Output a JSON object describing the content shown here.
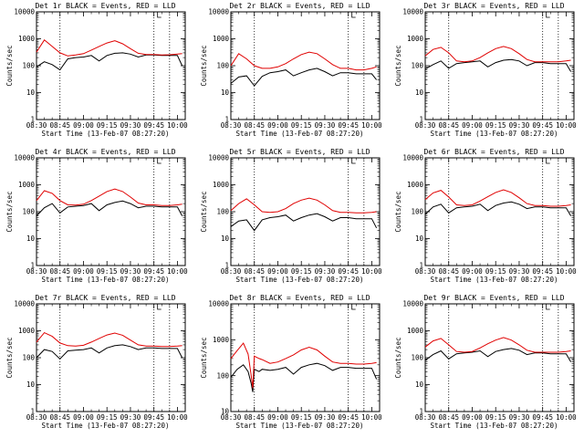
{
  "figure": {
    "x_axis_title": "Start Time (13-Feb-07 08:27:20)",
    "y_axis_title": "Counts/sec",
    "x_tick_labels": [
      "08:30",
      "08:45",
      "09:00",
      "09:15",
      "09:30",
      "09:45",
      "10:00"
    ],
    "series_colors": {
      "events": "#000000",
      "lld": "#e00000"
    }
  },
  "chart_data": [
    {
      "type": "line",
      "title": "Det 1r BLACK = Events, RED = LLD",
      "xlabel": "Start Time (13-Feb-07 08:27:20)",
      "ylabel": "Counts/sec",
      "yscale": "log",
      "xlim_minutes_after_0830": [
        0,
        95
      ],
      "ylim": [
        1,
        10000
      ],
      "y_tick_labels": [
        "1",
        "10",
        "100",
        "1000",
        "10000"
      ],
      "x": [
        0,
        5,
        10,
        15,
        20,
        25,
        30,
        35,
        40,
        45,
        50,
        55,
        60,
        65,
        70,
        75,
        80,
        85,
        90,
        93
      ],
      "series": [
        {
          "name": "Events",
          "color": "#000000",
          "values": [
            90,
            140,
            110,
            70,
            180,
            200,
            210,
            240,
            150,
            240,
            290,
            300,
            270,
            210,
            250,
            250,
            240,
            240,
            240,
            100
          ]
        },
        {
          "name": "LLD",
          "color": "#e00000",
          "values": [
            320,
            900,
            520,
            300,
            230,
            250,
            280,
            380,
            520,
            700,
            850,
            650,
            430,
            290,
            260,
            260,
            250,
            255,
            270,
            280
          ]
        }
      ]
    },
    {
      "type": "line",
      "title": "Det 2r BLACK = Events, RED = LLD",
      "xlabel": "Start Time (13-Feb-07 08:27:20)",
      "ylabel": "Counts/sec",
      "yscale": "log",
      "xlim_minutes_after_0830": [
        0,
        95
      ],
      "ylim": [
        1,
        10000
      ],
      "y_tick_labels": [
        "1",
        "10",
        "100",
        "1000",
        "10000"
      ],
      "x": [
        0,
        5,
        10,
        15,
        20,
        25,
        30,
        35,
        40,
        45,
        50,
        55,
        60,
        65,
        70,
        75,
        80,
        85,
        90,
        93
      ],
      "series": [
        {
          "name": "Events",
          "color": "#000000",
          "values": [
            22,
            38,
            42,
            18,
            40,
            55,
            60,
            70,
            42,
            55,
            70,
            80,
            60,
            42,
            55,
            55,
            50,
            50,
            50,
            30
          ]
        },
        {
          "name": "LLD",
          "color": "#e00000",
          "values": [
            100,
            280,
            180,
            100,
            80,
            80,
            90,
            120,
            180,
            260,
            320,
            280,
            180,
            110,
            80,
            80,
            70,
            70,
            80,
            90
          ]
        }
      ]
    },
    {
      "type": "line",
      "title": "Det 3r BLACK = Events, RED = LLD",
      "xlabel": "Start Time (13-Feb-07 08:27:20)",
      "ylabel": "Counts/sec",
      "yscale": "log",
      "xlim_minutes_after_0830": [
        0,
        95
      ],
      "ylim": [
        1,
        10000
      ],
      "y_tick_labels": [
        "1",
        "10",
        "100",
        "1000",
        "10000"
      ],
      "x": [
        0,
        5,
        10,
        15,
        20,
        25,
        30,
        35,
        40,
        45,
        50,
        55,
        60,
        65,
        70,
        75,
        80,
        85,
        90,
        93
      ],
      "series": [
        {
          "name": "Events",
          "color": "#000000",
          "values": [
            75,
            110,
            150,
            80,
            120,
            130,
            140,
            150,
            90,
            130,
            160,
            170,
            150,
            100,
            130,
            130,
            120,
            120,
            120,
            60
          ]
        },
        {
          "name": "LLD",
          "color": "#e00000",
          "values": [
            230,
            400,
            480,
            300,
            150,
            140,
            150,
            200,
            300,
            430,
            520,
            430,
            280,
            170,
            140,
            140,
            140,
            140,
            150,
            160
          ]
        }
      ]
    },
    {
      "type": "line",
      "title": "Det 4r BLACK = Events, RED = LLD",
      "xlabel": "Start Time (13-Feb-07 08:27:20)",
      "ylabel": "Counts/sec",
      "yscale": "log",
      "xlim_minutes_after_0830": [
        0,
        95
      ],
      "ylim": [
        1,
        10000
      ],
      "y_tick_labels": [
        "1",
        "10",
        "100",
        "1000",
        "10000"
      ],
      "x": [
        0,
        5,
        10,
        15,
        20,
        25,
        30,
        35,
        40,
        45,
        50,
        55,
        60,
        65,
        70,
        75,
        80,
        85,
        90,
        93
      ],
      "series": [
        {
          "name": "Events",
          "color": "#000000",
          "values": [
            70,
            140,
            200,
            90,
            150,
            160,
            170,
            200,
            110,
            180,
            220,
            250,
            200,
            140,
            160,
            160,
            150,
            150,
            150,
            70
          ]
        },
        {
          "name": "LLD",
          "color": "#e00000",
          "values": [
            260,
            600,
            480,
            260,
            180,
            175,
            190,
            260,
            380,
            560,
            700,
            560,
            350,
            210,
            180,
            180,
            170,
            170,
            180,
            190
          ]
        }
      ]
    },
    {
      "type": "line",
      "title": "Det 5r BLACK = Events, RED = LLD",
      "xlabel": "Start Time (13-Feb-07 08:27:20)",
      "ylabel": "Counts/sec",
      "yscale": "log",
      "xlim_minutes_after_0830": [
        0,
        95
      ],
      "ylim": [
        1,
        10000
      ],
      "y_tick_labels": [
        "1",
        "10",
        "100",
        "1000",
        "10000"
      ],
      "x": [
        0,
        5,
        10,
        15,
        20,
        25,
        30,
        35,
        40,
        45,
        50,
        55,
        60,
        65,
        70,
        75,
        80,
        85,
        90,
        93
      ],
      "series": [
        {
          "name": "Events",
          "color": "#000000",
          "values": [
            28,
            45,
            50,
            20,
            50,
            60,
            65,
            75,
            45,
            60,
            75,
            85,
            65,
            45,
            60,
            60,
            55,
            55,
            55,
            25
          ]
        },
        {
          "name": "LLD",
          "color": "#e00000",
          "values": [
            110,
            200,
            300,
            180,
            100,
            95,
            100,
            130,
            200,
            270,
            320,
            270,
            180,
            110,
            95,
            95,
            90,
            90,
            95,
            100
          ]
        }
      ]
    },
    {
      "type": "line",
      "title": "Det 6r BLACK = Events, RED = LLD",
      "xlabel": "Start Time (13-Feb-07 08:27:20)",
      "ylabel": "Counts/sec",
      "yscale": "log",
      "xlim_minutes_after_0830": [
        0,
        95
      ],
      "ylim": [
        1,
        10000
      ],
      "y_tick_labels": [
        "1",
        "10",
        "100",
        "1000",
        "10000"
      ],
      "x": [
        0,
        5,
        10,
        15,
        20,
        25,
        30,
        35,
        40,
        45,
        50,
        55,
        60,
        65,
        70,
        75,
        80,
        85,
        90,
        93
      ],
      "series": [
        {
          "name": "Events",
          "color": "#000000",
          "values": [
            80,
            150,
            190,
            90,
            140,
            150,
            160,
            190,
            110,
            170,
            210,
            230,
            190,
            130,
            150,
            150,
            140,
            140,
            140,
            70
          ]
        },
        {
          "name": "LLD",
          "color": "#e00000",
          "values": [
            280,
            500,
            620,
            350,
            180,
            170,
            180,
            250,
            360,
            520,
            650,
            520,
            330,
            200,
            170,
            170,
            160,
            160,
            170,
            180
          ]
        }
      ]
    },
    {
      "type": "line",
      "title": "Det 7r BLACK = Events, RED = LLD",
      "xlabel": "Start Time (13-Feb-07 08:27:20)",
      "ylabel": "Counts/sec",
      "yscale": "log",
      "xlim_minutes_after_0830": [
        0,
        95
      ],
      "ylim": [
        1,
        10000
      ],
      "y_tick_labels": [
        "1",
        "10",
        "100",
        "1000",
        "10000"
      ],
      "x": [
        0,
        5,
        10,
        15,
        20,
        25,
        30,
        35,
        40,
        45,
        50,
        55,
        60,
        65,
        70,
        75,
        80,
        85,
        90,
        93
      ],
      "series": [
        {
          "name": "Events",
          "color": "#000000",
          "values": [
            100,
            200,
            170,
            90,
            180,
            190,
            200,
            230,
            150,
            230,
            280,
            300,
            260,
            200,
            230,
            230,
            220,
            220,
            220,
            100
          ]
        },
        {
          "name": "LLD",
          "color": "#e00000",
          "values": [
            380,
            850,
            620,
            350,
            280,
            270,
            290,
            380,
            520,
            700,
            820,
            680,
            450,
            300,
            270,
            270,
            260,
            260,
            270,
            280
          ]
        }
      ]
    },
    {
      "type": "line",
      "title": "Det 8r BLACK = Events, RED = LLD",
      "xlabel": "Start Time (13-Feb-07 08:27:20)",
      "ylabel": "Counts/sec",
      "yscale": "log",
      "xlim_minutes_after_0830": [
        0,
        95
      ],
      "ylim": [
        10,
        10000
      ],
      "y_tick_labels": [
        "10",
        "100",
        "1000",
        "10000"
      ],
      "x": [
        0,
        4,
        8,
        11,
        13,
        14,
        15,
        18,
        20,
        25,
        30,
        35,
        40,
        45,
        50,
        55,
        60,
        65,
        70,
        75,
        80,
        85,
        90,
        93
      ],
      "series": [
        {
          "name": "Events",
          "color": "#000000",
          "values": [
            90,
            150,
            200,
            130,
            60,
            35,
            150,
            130,
            150,
            140,
            150,
            170,
            110,
            170,
            200,
            220,
            190,
            140,
            170,
            170,
            160,
            160,
            160,
            80
          ]
        },
        {
          "name": "LLD",
          "color": "#e00000",
          "values": [
            300,
            500,
            800,
            400,
            100,
            45,
            350,
            300,
            280,
            220,
            240,
            300,
            380,
            520,
            620,
            520,
            350,
            240,
            220,
            220,
            210,
            210,
            220,
            230
          ]
        }
      ]
    },
    {
      "type": "line",
      "title": "Det 9r BLACK = Events, RED = LLD",
      "xlabel": "Start Time (13-Feb-07 08:27:20)",
      "ylabel": "Counts/sec",
      "yscale": "log",
      "xlim_minutes_after_0830": [
        0,
        95
      ],
      "ylim": [
        1,
        10000
      ],
      "y_tick_labels": [
        "1",
        "10",
        "100",
        "1000",
        "10000"
      ],
      "x": [
        0,
        5,
        10,
        15,
        20,
        25,
        30,
        35,
        40,
        45,
        50,
        55,
        60,
        65,
        70,
        75,
        80,
        85,
        90,
        93
      ],
      "series": [
        {
          "name": "Events",
          "color": "#000000",
          "values": [
            80,
            130,
            180,
            90,
            140,
            150,
            160,
            180,
            110,
            170,
            200,
            220,
            190,
            130,
            150,
            150,
            140,
            140,
            140,
            70
          ]
        },
        {
          "name": "LLD",
          "color": "#e00000",
          "values": [
            250,
            420,
            520,
            300,
            170,
            160,
            170,
            230,
            330,
            450,
            560,
            450,
            300,
            190,
            160,
            160,
            160,
            160,
            170,
            180
          ]
        }
      ]
    }
  ]
}
